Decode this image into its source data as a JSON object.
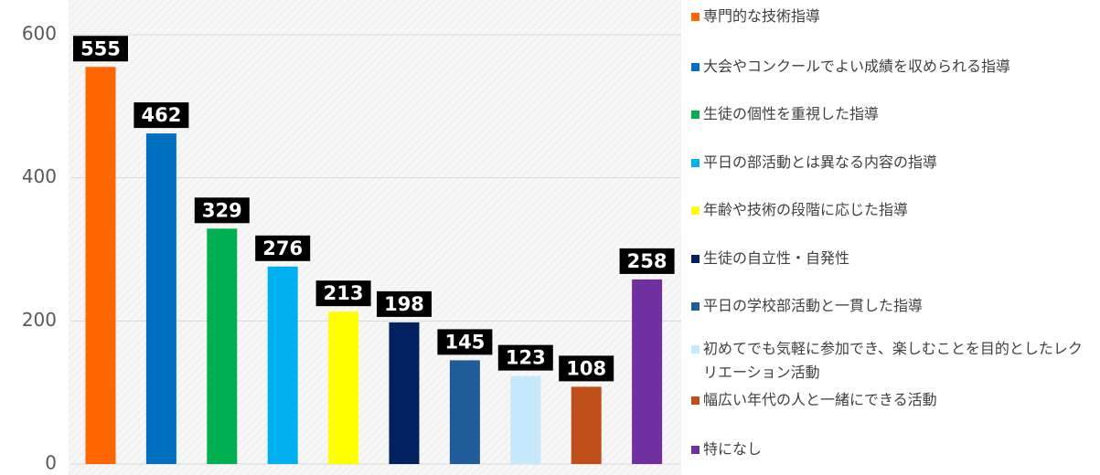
{
  "chart_data": {
    "type": "bar",
    "categories": [
      null,
      null,
      null,
      null,
      null,
      null,
      null,
      null,
      null,
      null
    ],
    "series": [
      {
        "name": "専門的な技術指導",
        "color": "#ff6600"
      },
      {
        "name": "大会やコンクールでよい成績を収められる指導",
        "color": "#0070c0"
      },
      {
        "name": "生徒の個性を重視した指導",
        "color": "#00b050"
      },
      {
        "name": "平日の部活動とは異なる内容の指導",
        "color": "#00b0f0"
      },
      {
        "name": "年齢や技術の段階に応じた指導",
        "color": "#ffff00"
      },
      {
        "name": "生徒の自立性・自発性",
        "color": "#002060"
      },
      {
        "name": "平日の学校部活動と一貫した指導",
        "color": "#1f5c99"
      },
      {
        "name": "初めてでも気軽に参加でき、楽しむことを目的としたレクリエーション活動",
        "color": "#c5e8fa"
      },
      {
        "name": "幅広い年代の人と一緒にできる活動",
        "color": "#c0501a"
      },
      {
        "name": "特になし",
        "color": "#7030a0"
      }
    ],
    "values": [
      555,
      462,
      329,
      276,
      213,
      198,
      145,
      123,
      108,
      258
    ],
    "ylim": [
      0,
      600
    ],
    "yticks": [
      0,
      200,
      400,
      600
    ],
    "grid": true,
    "legend": "right"
  }
}
